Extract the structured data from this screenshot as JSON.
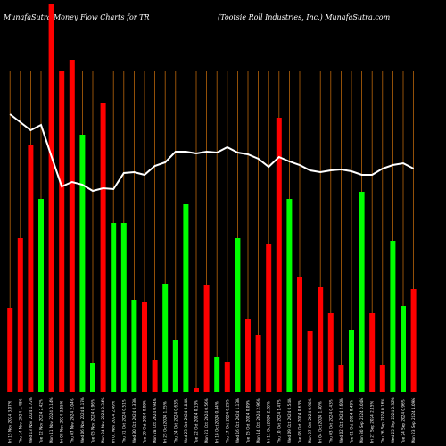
{
  "header": {
    "left": "MunafaSutra Money Flow Charts for TR",
    "right": "(Tootsie Roll Industries, Inc.) MunafaSutra.com"
  },
  "chart_data": {
    "type": "bar",
    "title": "MunafaSutra Money Flow Charts for TR",
    "subtitle": "(Tootsie Roll Industries, Inc.) MunafaSutra.com",
    "ylim": [
      0,
      440
    ],
    "grid": {
      "vertical": true,
      "color": "#b8650a"
    },
    "colors": {
      "up": "#00ff00",
      "down": "#ff0000",
      "line": "#ffffff",
      "grid": "#b8650a",
      "background": "#000000"
    },
    "categories": [
      "Fri 15 Nov 2024 3.07%",
      "Thu 14 Nov 2024 1.48%",
      "Wed 13 Nov 2024 1.72%",
      "Tue 12 Nov 2024 2.42%",
      "Mon 11 Nov 2024 0.14%",
      "Fri 08 Nov 2024 3.55%",
      "Thu 07 Nov 2024 2.04%",
      "Wed 06 Nov 2024 0.17%",
      "Tue 05 Nov 2024 0.96%",
      "Mon 04 Nov 2024 0.34%",
      "Fri 01 Nov 2024 2.49%",
      "Thu 31 Oct 2024 0.51%",
      "Wed 30 Oct 2024 0.33%",
      "Tue 29 Oct 2024 0.09%",
      "Mon 28 Oct 2024 0.94%",
      "Fri 25 Oct 2024 1.25%",
      "Thu 24 Oct 2024 0.63%",
      "Wed 23 Oct 2024 0.84%",
      "Tue 22 Oct 2024 0.13%",
      "Mon 21 Oct 2024 0.56%",
      "Fri 18 Oct 2024 0.44%",
      "Thu 17 Oct 2024 0.29%",
      "Wed 16 Oct 2024 1.13%",
      "Tue 15 Oct 2024 0.09%",
      "Mon 14 Oct 2024 2.96%",
      "Fri 11 Oct 2024 2.28%",
      "Thu 10 Oct 2024 1.47%",
      "Wed 09 Oct 2024 0.54%",
      "Tue 08 Oct 2024 0.63%",
      "Mon 07 Oct 2024 0.98%",
      "Fri 04 Oct 2024 1.40%",
      "Thu 03 Oct 2024 0.43%",
      "Wed 02 Oct 2024 2.60%",
      "Tue 01 Oct 2024 0.49%",
      "Mon 30 Sep 2024 0.04%",
      "Fri 27 Sep 2024 2.15%",
      "Thu 26 Sep 2024 0.16%",
      "Wed 25 Sep 2024 0.32%",
      "Tue 24 Sep 2024 0.96%",
      "Mon 23 Sep 2024 1.09%"
    ],
    "bars": [
      {
        "value": 95,
        "dir": "down"
      },
      {
        "value": 173,
        "dir": "down"
      },
      {
        "value": 277,
        "dir": "down"
      },
      {
        "value": 217,
        "dir": "up"
      },
      {
        "value": 435,
        "dir": "down"
      },
      {
        "value": 360,
        "dir": "down"
      },
      {
        "value": 373,
        "dir": "down"
      },
      {
        "value": 289,
        "dir": "up"
      },
      {
        "value": 33,
        "dir": "up"
      },
      {
        "value": 324,
        "dir": "down"
      },
      {
        "value": 190,
        "dir": "up"
      },
      {
        "value": 190,
        "dir": "up"
      },
      {
        "value": 104,
        "dir": "up"
      },
      {
        "value": 101,
        "dir": "down"
      },
      {
        "value": 36,
        "dir": "down"
      },
      {
        "value": 122,
        "dir": "up"
      },
      {
        "value": 59,
        "dir": "up"
      },
      {
        "value": 211,
        "dir": "up"
      },
      {
        "value": 5,
        "dir": "down"
      },
      {
        "value": 121,
        "dir": "down"
      },
      {
        "value": 40,
        "dir": "up"
      },
      {
        "value": 34,
        "dir": "down"
      },
      {
        "value": 173,
        "dir": "up"
      },
      {
        "value": 82,
        "dir": "down"
      },
      {
        "value": 64,
        "dir": "down"
      },
      {
        "value": 166,
        "dir": "down"
      },
      {
        "value": 308,
        "dir": "down"
      },
      {
        "value": 217,
        "dir": "up"
      },
      {
        "value": 129,
        "dir": "down"
      },
      {
        "value": 69,
        "dir": "down"
      },
      {
        "value": 118,
        "dir": "down"
      },
      {
        "value": 89,
        "dir": "down"
      },
      {
        "value": 31,
        "dir": "down"
      },
      {
        "value": 70,
        "dir": "up"
      },
      {
        "value": 225,
        "dir": "up"
      },
      {
        "value": 89,
        "dir": "down"
      },
      {
        "value": 31,
        "dir": "down"
      },
      {
        "value": 170,
        "dir": "up"
      },
      {
        "value": 97,
        "dir": "up"
      },
      {
        "value": 116,
        "dir": "down"
      }
    ],
    "line": [
      312,
      303,
      294,
      300,
      265,
      231,
      236,
      233,
      226,
      229,
      228,
      246,
      247,
      244,
      254,
      258,
      270,
      270,
      268,
      270,
      269,
      275,
      269,
      267,
      262,
      253,
      264,
      259,
      255,
      249,
      247,
      249,
      250,
      248,
      244,
      244,
      251,
      255,
      257,
      251
    ]
  }
}
